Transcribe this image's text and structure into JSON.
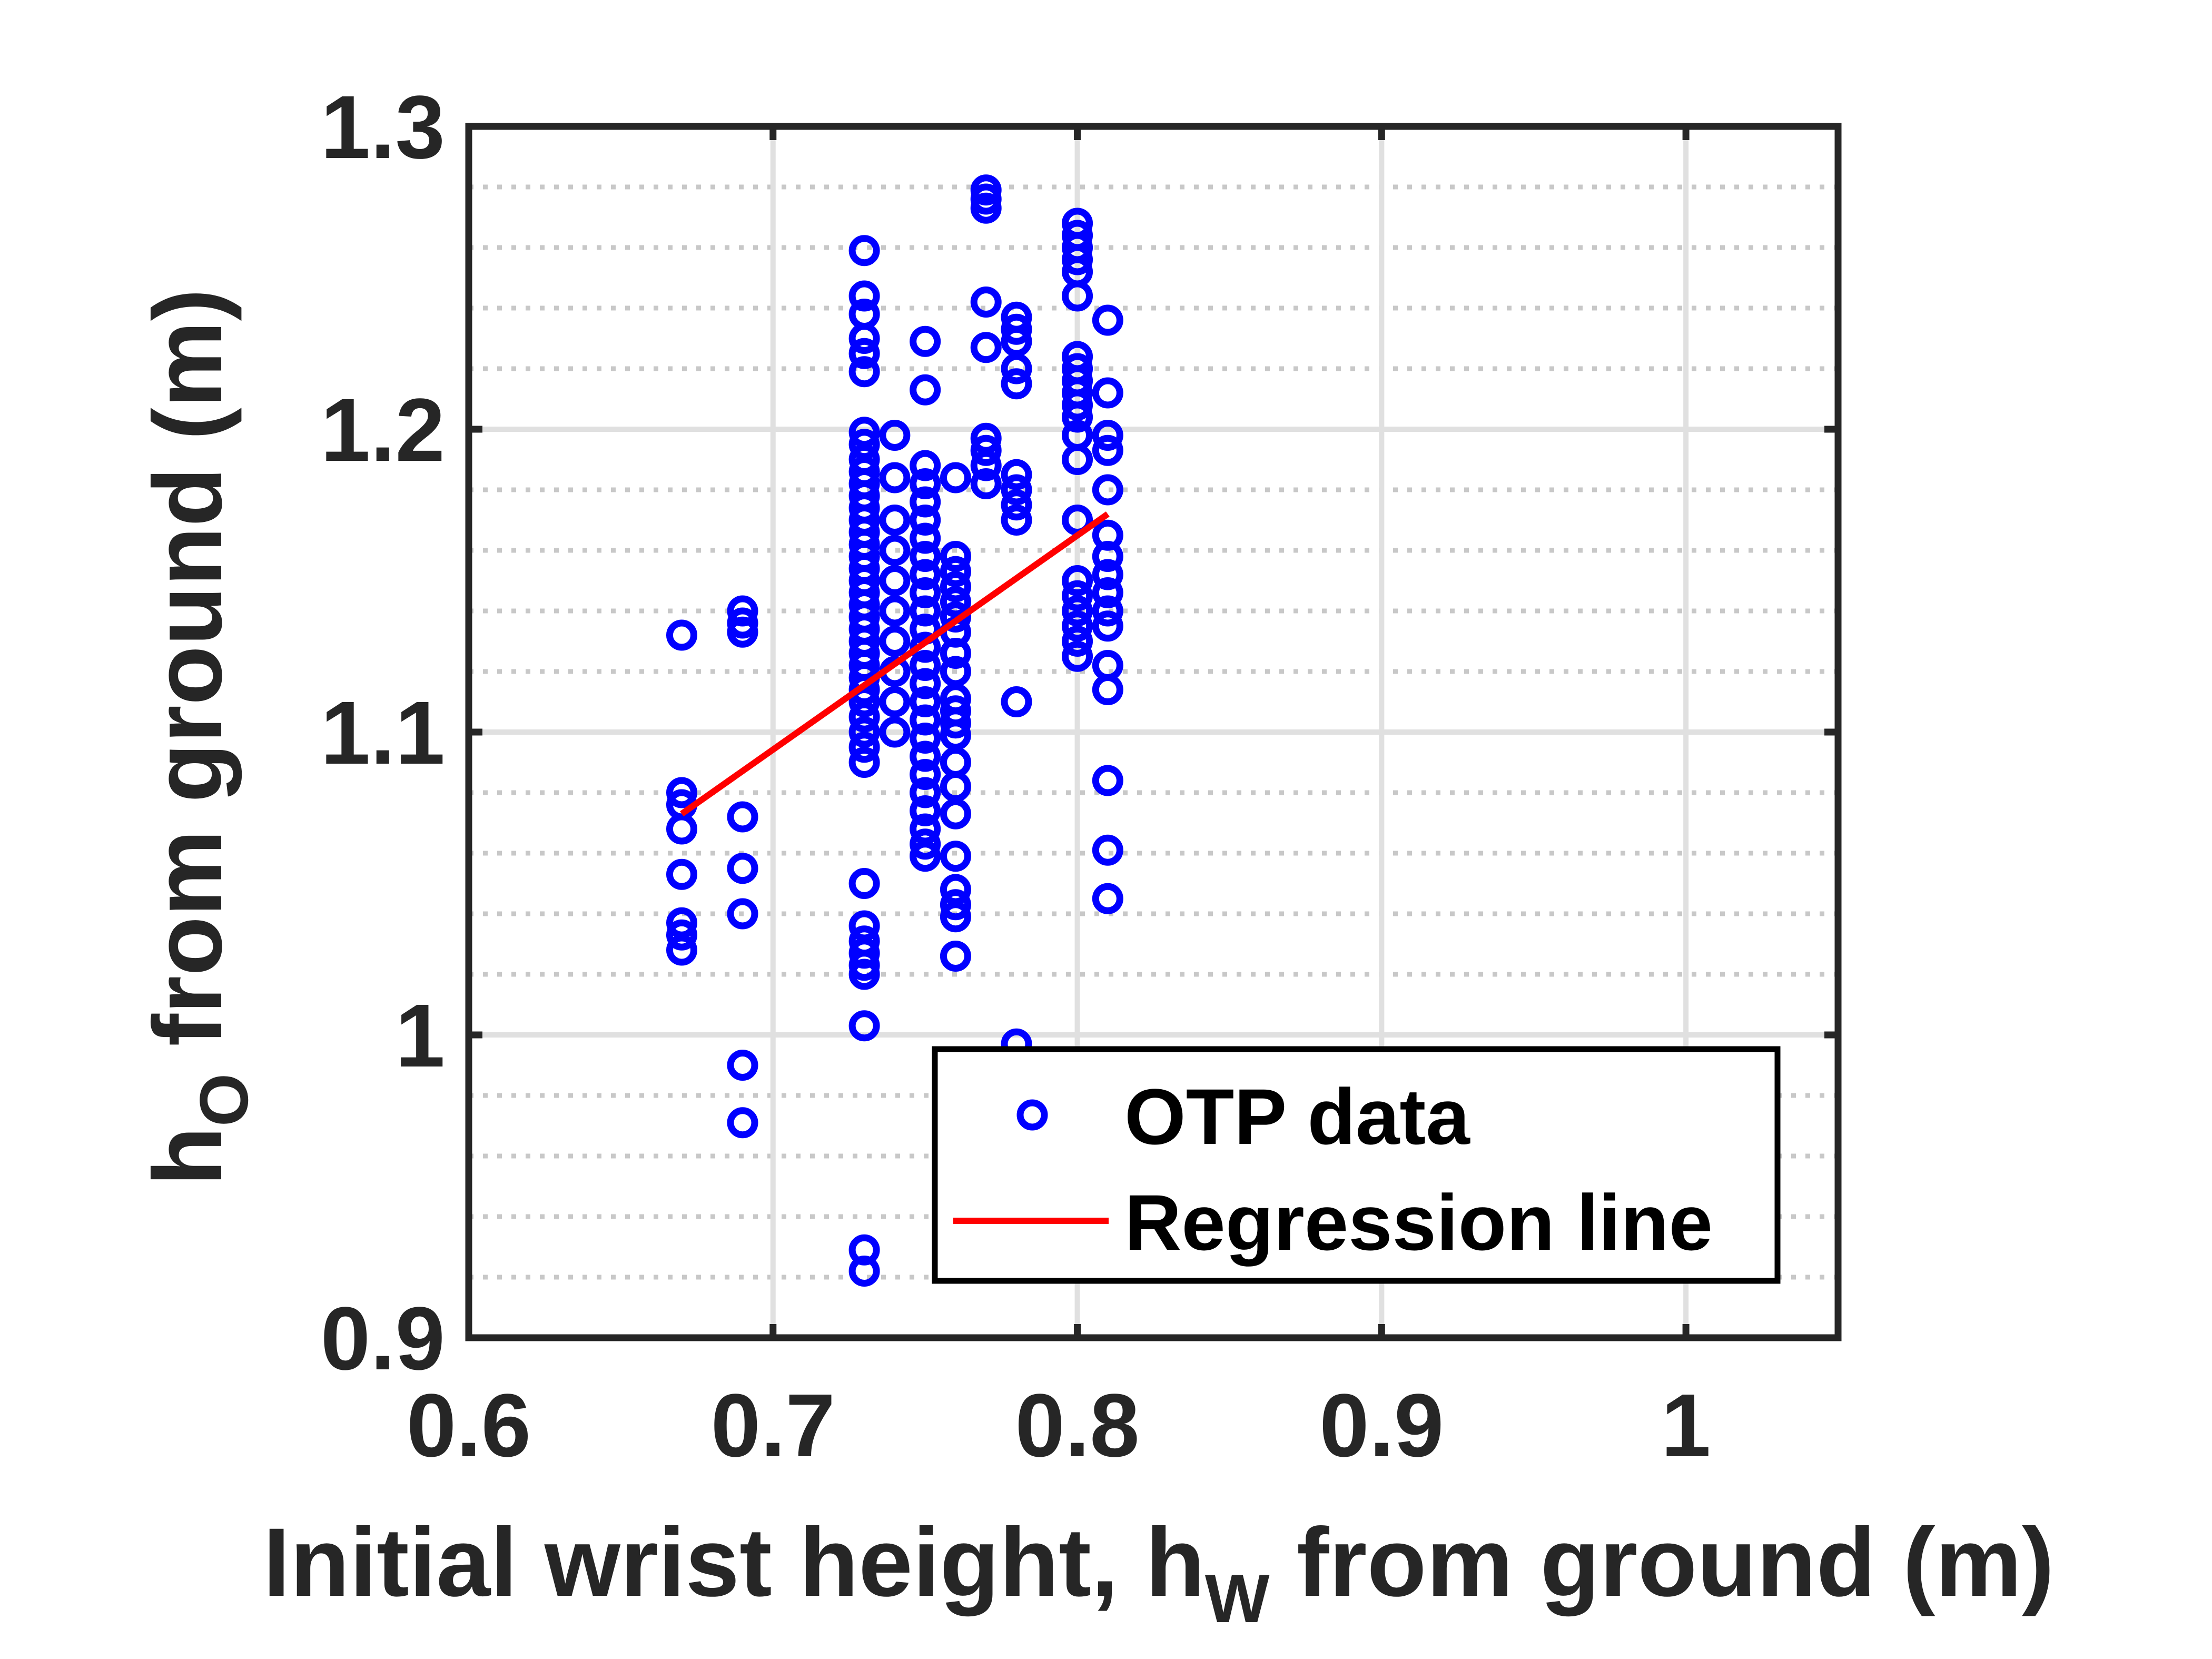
{
  "chart_data": {
    "type": "scatter",
    "title": "",
    "xlabel": {
      "prefix": "Initial wrist height, h",
      "subscript": "W",
      "suffix": " from ground (m)"
    },
    "ylabel": {
      "prefix": "h",
      "subscript": "O",
      "suffix": " from ground (m)"
    },
    "xlim": [
      0.6,
      1.05
    ],
    "ylim": [
      0.9,
      1.3
    ],
    "xticks": [
      0.6,
      0.7,
      0.8,
      0.9,
      1.0
    ],
    "xtick_labels": [
      "0.6",
      "0.7",
      "0.8",
      "0.9",
      "1"
    ],
    "yticks": [
      0.9,
      1.0,
      1.1,
      1.2,
      1.3
    ],
    "ytick_labels": [
      "0.9",
      "1",
      "1.1",
      "1.2",
      "1.3"
    ],
    "grid": "major solid, minor dotted on y-axis",
    "legend_position": "bottom-right",
    "colors": {
      "points": "#0000ff",
      "regression": "#ff0000",
      "axes": "#262626",
      "grid": "#e0e0e0"
    },
    "series": [
      {
        "name": "OTP data",
        "kind": "scatter",
        "marker": "circle",
        "color": "#0000ff",
        "points": [
          [
            0.67,
            1.132
          ],
          [
            0.67,
            1.08
          ],
          [
            0.67,
            1.076
          ],
          [
            0.67,
            1.068
          ],
          [
            0.67,
            1.053
          ],
          [
            0.67,
            1.037
          ],
          [
            0.67,
            1.033
          ],
          [
            0.67,
            1.028
          ],
          [
            0.69,
            1.14
          ],
          [
            0.69,
            1.136
          ],
          [
            0.69,
            1.133
          ],
          [
            0.69,
            1.072
          ],
          [
            0.69,
            1.055
          ],
          [
            0.69,
            1.04
          ],
          [
            0.69,
            0.99
          ],
          [
            0.69,
            0.971
          ],
          [
            0.73,
            1.259
          ],
          [
            0.73,
            1.244
          ],
          [
            0.73,
            1.238
          ],
          [
            0.73,
            1.23
          ],
          [
            0.73,
            1.225
          ],
          [
            0.73,
            1.219
          ],
          [
            0.73,
            1.199
          ],
          [
            0.73,
            1.195
          ],
          [
            0.73,
            1.19
          ],
          [
            0.73,
            1.186
          ],
          [
            0.73,
            1.182
          ],
          [
            0.73,
            1.178
          ],
          [
            0.73,
            1.174
          ],
          [
            0.73,
            1.17
          ],
          [
            0.73,
            1.166
          ],
          [
            0.73,
            1.162
          ],
          [
            0.73,
            1.158
          ],
          [
            0.73,
            1.154
          ],
          [
            0.73,
            1.15
          ],
          [
            0.73,
            1.146
          ],
          [
            0.73,
            1.142
          ],
          [
            0.73,
            1.138
          ],
          [
            0.73,
            1.134
          ],
          [
            0.73,
            1.13
          ],
          [
            0.73,
            1.126
          ],
          [
            0.73,
            1.122
          ],
          [
            0.73,
            1.118
          ],
          [
            0.73,
            1.114
          ],
          [
            0.73,
            1.11
          ],
          [
            0.73,
            1.105
          ],
          [
            0.73,
            1.1
          ],
          [
            0.73,
            1.095
          ],
          [
            0.73,
            1.09
          ],
          [
            0.73,
            1.05
          ],
          [
            0.73,
            1.036
          ],
          [
            0.73,
            1.031
          ],
          [
            0.73,
            1.027
          ],
          [
            0.73,
            1.023
          ],
          [
            0.73,
            1.02
          ],
          [
            0.73,
            1.003
          ],
          [
            0.73,
            0.929
          ],
          [
            0.73,
            0.922
          ],
          [
            0.74,
            1.198
          ],
          [
            0.74,
            1.184
          ],
          [
            0.74,
            1.17
          ],
          [
            0.74,
            1.16
          ],
          [
            0.74,
            1.15
          ],
          [
            0.74,
            1.14
          ],
          [
            0.74,
            1.13
          ],
          [
            0.74,
            1.12
          ],
          [
            0.74,
            1.11
          ],
          [
            0.74,
            1.1
          ],
          [
            0.75,
            1.229
          ],
          [
            0.75,
            1.213
          ],
          [
            0.75,
            1.188
          ],
          [
            0.75,
            1.182
          ],
          [
            0.75,
            1.176
          ],
          [
            0.75,
            1.17
          ],
          [
            0.75,
            1.164
          ],
          [
            0.75,
            1.158
          ],
          [
            0.75,
            1.152
          ],
          [
            0.75,
            1.146
          ],
          [
            0.75,
            1.14
          ],
          [
            0.75,
            1.134
          ],
          [
            0.75,
            1.128
          ],
          [
            0.75,
            1.122
          ],
          [
            0.75,
            1.116
          ],
          [
            0.75,
            1.11
          ],
          [
            0.75,
            1.104
          ],
          [
            0.75,
            1.098
          ],
          [
            0.75,
            1.092
          ],
          [
            0.75,
            1.086
          ],
          [
            0.75,
            1.08
          ],
          [
            0.75,
            1.074
          ],
          [
            0.75,
            1.068
          ],
          [
            0.75,
            1.063
          ],
          [
            0.75,
            1.059
          ],
          [
            0.76,
            1.184
          ],
          [
            0.76,
            1.158
          ],
          [
            0.76,
            1.153
          ],
          [
            0.76,
            1.148
          ],
          [
            0.76,
            1.143
          ],
          [
            0.76,
            1.138
          ],
          [
            0.76,
            1.133
          ],
          [
            0.76,
            1.126
          ],
          [
            0.76,
            1.12
          ],
          [
            0.76,
            1.111
          ],
          [
            0.76,
            1.107
          ],
          [
            0.76,
            1.103
          ],
          [
            0.76,
            1.099
          ],
          [
            0.76,
            1.09
          ],
          [
            0.76,
            1.082
          ],
          [
            0.76,
            1.073
          ],
          [
            0.76,
            1.059
          ],
          [
            0.76,
            1.048
          ],
          [
            0.76,
            1.043
          ],
          [
            0.76,
            1.039
          ],
          [
            0.76,
            1.026
          ],
          [
            0.77,
            1.279
          ],
          [
            0.77,
            1.276
          ],
          [
            0.77,
            1.273
          ],
          [
            0.77,
            1.242
          ],
          [
            0.77,
            1.227
          ],
          [
            0.77,
            1.197
          ],
          [
            0.77,
            1.193
          ],
          [
            0.77,
            1.188
          ],
          [
            0.77,
            1.182
          ],
          [
            0.78,
            1.237
          ],
          [
            0.78,
            1.233
          ],
          [
            0.78,
            1.229
          ],
          [
            0.78,
            1.22
          ],
          [
            0.78,
            1.215
          ],
          [
            0.78,
            1.185
          ],
          [
            0.78,
            1.18
          ],
          [
            0.78,
            1.175
          ],
          [
            0.78,
            1.17
          ],
          [
            0.78,
            1.11
          ],
          [
            0.78,
            0.997
          ],
          [
            0.8,
            1.268
          ],
          [
            0.8,
            1.264
          ],
          [
            0.8,
            1.26
          ],
          [
            0.8,
            1.256
          ],
          [
            0.8,
            1.252
          ],
          [
            0.8,
            1.244
          ],
          [
            0.8,
            1.224
          ],
          [
            0.8,
            1.22
          ],
          [
            0.8,
            1.216
          ],
          [
            0.8,
            1.212
          ],
          [
            0.8,
            1.208
          ],
          [
            0.8,
            1.204
          ],
          [
            0.8,
            1.198
          ],
          [
            0.8,
            1.19
          ],
          [
            0.8,
            1.17
          ],
          [
            0.8,
            1.15
          ],
          [
            0.8,
            1.145
          ],
          [
            0.8,
            1.14
          ],
          [
            0.8,
            1.135
          ],
          [
            0.8,
            1.13
          ],
          [
            0.8,
            1.125
          ],
          [
            0.81,
            1.236
          ],
          [
            0.81,
            1.212
          ],
          [
            0.81,
            1.198
          ],
          [
            0.81,
            1.193
          ],
          [
            0.81,
            1.18
          ],
          [
            0.81,
            1.165
          ],
          [
            0.81,
            1.158
          ],
          [
            0.81,
            1.152
          ],
          [
            0.81,
            1.146
          ],
          [
            0.81,
            1.14
          ],
          [
            0.81,
            1.135
          ],
          [
            0.81,
            1.122
          ],
          [
            0.81,
            1.114
          ],
          [
            0.81,
            1.084
          ],
          [
            0.81,
            1.061
          ],
          [
            0.81,
            1.045
          ]
        ]
      },
      {
        "name": "Regression line",
        "kind": "line",
        "color": "#ff0000",
        "points": [
          [
            0.67,
            1.073
          ],
          [
            0.81,
            1.172
          ]
        ]
      }
    ]
  }
}
